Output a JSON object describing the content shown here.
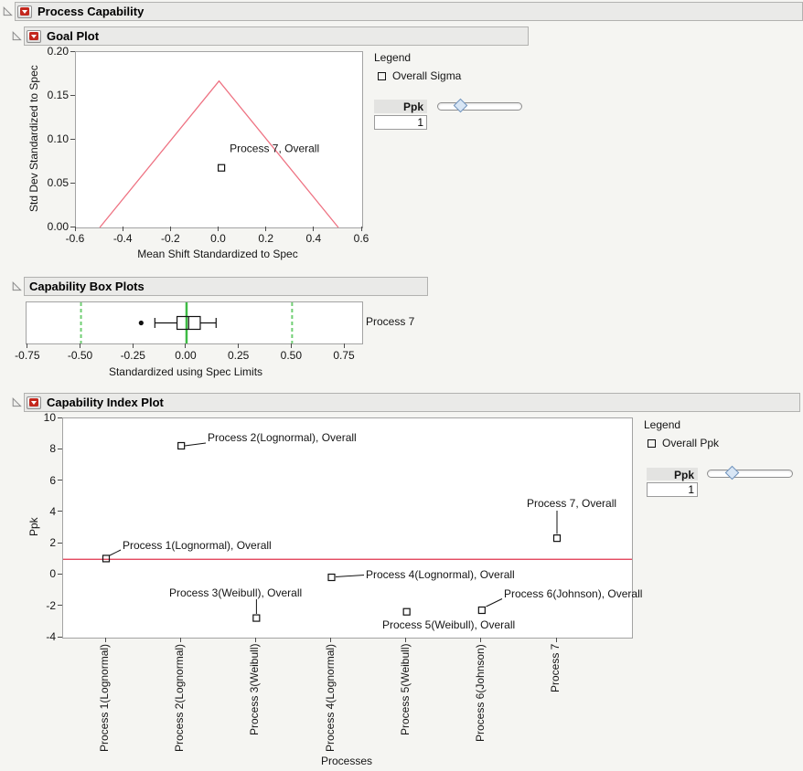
{
  "header": {
    "title": "Process Capability"
  },
  "goal_plot": {
    "title": "Goal Plot",
    "legend": {
      "title": "Legend",
      "items": [
        {
          "label": "Overall Sigma"
        }
      ]
    },
    "ppk_control": {
      "label": "Ppk",
      "value": "1"
    }
  },
  "box_plots": {
    "title": "Capability Box Plots",
    "row_label": "Process 7"
  },
  "index_plot": {
    "title": "Capability Index Plot",
    "legend": {
      "title": "Legend",
      "items": [
        {
          "label": "Overall Ppk"
        }
      ]
    },
    "ppk_control": {
      "label": "Ppk",
      "value": "1"
    }
  },
  "chart_data": [
    {
      "id": "goal-plot",
      "type": "scatter",
      "title": "Goal Plot",
      "xlabel": "Mean Shift Standardized to Spec",
      "ylabel": "Std Dev Standardized to Spec",
      "xlim": [
        -0.6,
        0.6
      ],
      "ylim": [
        0,
        0.2
      ],
      "xticks": [
        -0.6,
        -0.4,
        -0.2,
        0,
        0.2,
        0.4,
        0.6
      ],
      "xtick_labels": [
        "-0.6",
        "-0.4",
        "-0.2",
        "0.0",
        "0.2",
        "0.4",
        "0.6"
      ],
      "yticks": [
        0.2,
        0.15,
        0.1,
        0.05,
        0
      ],
      "ytick_labels": [
        "0.20",
        "0.15",
        "0.10",
        "0.05",
        "0.00"
      ],
      "grid": false,
      "goal_triangle": {
        "points": [
          [
            -0.5,
            0
          ],
          [
            0,
            0.167
          ],
          [
            0.5,
            0
          ]
        ],
        "color": "#ee7282"
      },
      "points": [
        {
          "label": "Process 7, Overall",
          "x": 0.01,
          "y": 0.068
        }
      ]
    },
    {
      "id": "capability-box-plot",
      "type": "boxplot",
      "xlabel": "Standardized using Spec Limits",
      "xlim": [
        -0.758,
        0.832
      ],
      "xticks": [
        -0.75,
        -0.5,
        -0.25,
        0,
        0.25,
        0.5,
        0.75
      ],
      "xtick_labels": [
        "-0.75",
        "-0.50",
        "-0.25",
        "0.00",
        "0.25",
        "0.50",
        "0.75"
      ],
      "reference_lines": [
        {
          "value": -0.5,
          "style": "dashed",
          "color": "#71cf74"
        },
        {
          "value": 0,
          "style": "solid",
          "color": "#3dbb44"
        },
        {
          "value": 0.5,
          "style": "dashed",
          "color": "#71cf74"
        }
      ],
      "rows": [
        {
          "label": "Process 7",
          "outliers": [
            -0.215
          ],
          "whisker_low": -0.15,
          "q1": -0.045,
          "median": 0.01,
          "q3": 0.065,
          "whisker_high": 0.14
        }
      ]
    },
    {
      "id": "capability-index-plot",
      "type": "scatter",
      "xlabel": "Processes",
      "ylabel": "Ppk",
      "ylim": [
        -4,
        10
      ],
      "yticks": [
        10,
        8,
        6,
        4,
        2,
        0,
        -2,
        -4
      ],
      "ytick_labels": [
        "10",
        "8",
        "6",
        "4",
        "2",
        "0",
        "-2",
        "-4"
      ],
      "categories": [
        "Process 1(Lognormal)",
        "Process 2(Lognormal)",
        "Process 3(Weibull)",
        "Process 4(Lognormal)",
        "Process 5(Weibull)",
        "Process 6(Johnson)",
        "Process 7"
      ],
      "reference_line": {
        "value": 1,
        "color": "#e0334b"
      },
      "series": [
        {
          "name": "Overall Ppk",
          "values": [
            1.05,
            8.25,
            -2.75,
            -0.15,
            -2.35,
            -2.25,
            2.35
          ],
          "labels": [
            "Process 1(Lognormal), Overall",
            "Process 2(Lognormal), Overall",
            "Process 3(Weibull), Overall",
            "Process 4(Lognormal), Overall",
            "Process 5(Weibull), Overall",
            "Process 6(Johnson), Overall",
            "Process 7, Overall"
          ]
        }
      ]
    }
  ]
}
